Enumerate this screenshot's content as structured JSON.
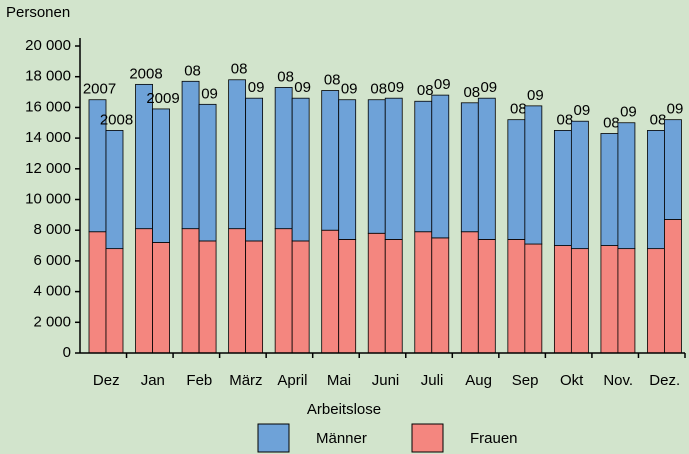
{
  "chart_data": {
    "type": "bar",
    "y_label": "Personen",
    "x_label": "Arbeitslose",
    "categories": [
      "Dez",
      "Jan",
      "Feb",
      "März",
      "April",
      "Mai",
      "Juni",
      "Juli",
      "Aug",
      "Sep",
      "Okt",
      "Nov.",
      "Dez."
    ],
    "bar_labels": [
      [
        "2007",
        "2008"
      ],
      [
        "2008",
        "2009"
      ],
      [
        "08",
        "09"
      ],
      [
        "08",
        "09"
      ],
      [
        "08",
        "09"
      ],
      [
        "08",
        "09"
      ],
      [
        "08",
        "09"
      ],
      [
        "08",
        "09"
      ],
      [
        "08",
        "09"
      ],
      [
        "08",
        "09"
      ],
      [
        "08",
        "09"
      ],
      [
        "08",
        "09"
      ],
      [
        "08",
        "09"
      ]
    ],
    "series": [
      {
        "name": "Frauen",
        "color": "#f4867f",
        "values": [
          [
            7900,
            6800
          ],
          [
            8100,
            7200
          ],
          [
            8100,
            7300
          ],
          [
            8100,
            7300
          ],
          [
            8100,
            7300
          ],
          [
            8000,
            7400
          ],
          [
            7800,
            7400
          ],
          [
            7900,
            7500
          ],
          [
            7900,
            7400
          ],
          [
            7400,
            7100
          ],
          [
            7000,
            6800
          ],
          [
            7000,
            6800
          ],
          [
            6800,
            8700
          ]
        ]
      },
      {
        "name": "Männer",
        "color": "#6ea2d8",
        "values": [
          [
            8600,
            7700
          ],
          [
            9400,
            8700
          ],
          [
            9600,
            8900
          ],
          [
            9700,
            9300
          ],
          [
            9200,
            9300
          ],
          [
            9100,
            9100
          ],
          [
            8700,
            9200
          ],
          [
            8500,
            9300
          ],
          [
            8400,
            9200
          ],
          [
            7800,
            9000
          ],
          [
            7500,
            8300
          ],
          [
            7300,
            8200
          ],
          [
            7700,
            6500
          ]
        ]
      }
    ],
    "legend_order": [
      1,
      0
    ],
    "ylim": [
      0,
      20000
    ],
    "yticks": [
      0,
      {
        "value": 2000,
        "label": "2 000"
      },
      {
        "value": 4000,
        "label": "4 000"
      },
      {
        "value": 6000,
        "label": "6 000"
      },
      {
        "value": 8000,
        "label": "8 000"
      },
      {
        "value": 10000,
        "label": "10 000"
      },
      {
        "value": 12000,
        "label": "12 000"
      },
      {
        "value": 14000,
        "label": "14 000"
      },
      {
        "value": 16000,
        "label": "16 000"
      },
      {
        "value": 18000,
        "label": "18 000"
      },
      {
        "value": 20000,
        "label": "20 000"
      }
    ]
  }
}
